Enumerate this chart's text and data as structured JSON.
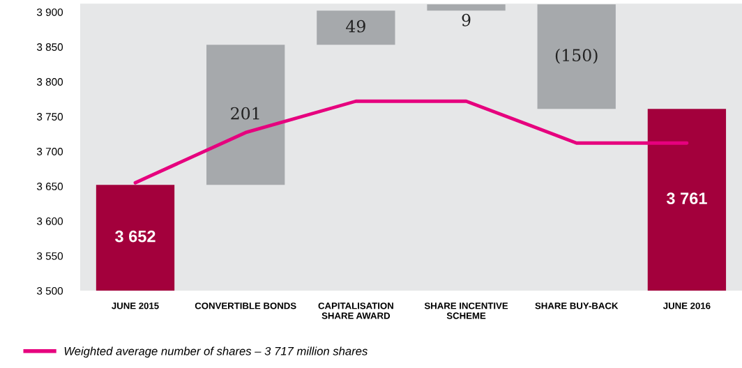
{
  "chart_data": {
    "type": "bar",
    "categories": [
      "JUNE 2015",
      "CONVERTIBLE BONDS",
      "CAPITALISATION\nSHARE AWARD",
      "SHARE INCENTIVE\nSCHEME",
      "SHARE BUY-BACK",
      "JUNE 2016"
    ],
    "series": [
      {
        "values": [
          3652,
          201,
          49,
          9,
          -150,
          3761
        ],
        "base": [
          null,
          3652,
          3853,
          3902,
          3911,
          null
        ],
        "colors": [
          "#a3003c",
          "#a6a9ac",
          "#a6a9ac",
          "#a6a9ac",
          "#a6a9ac",
          "#a3003c"
        ],
        "value_labels": [
          "3 652",
          "201",
          "49",
          "9",
          "(150)",
          "3 761"
        ]
      },
      {
        "type": "line",
        "name": "Weighted average number of shares – 3 717 million shares",
        "color": "#e6007e",
        "values": [
          3655,
          3727,
          3772,
          3772,
          3712,
          3712
        ]
      }
    ],
    "ylim": [
      3500,
      3912
    ],
    "yticks": [
      {
        "value": 3500,
        "label": "3 500"
      },
      {
        "value": 3550,
        "label": "3 550"
      },
      {
        "value": 3600,
        "label": "3 600"
      },
      {
        "value": 3650,
        "label": "3 650"
      },
      {
        "value": 3700,
        "label": "3 700"
      },
      {
        "value": 3750,
        "label": "3 750"
      },
      {
        "value": 3800,
        "label": "3 800"
      },
      {
        "value": 3850,
        "label": "3 850"
      },
      {
        "value": 3900,
        "label": "3 900"
      }
    ],
    "grid": false,
    "legend": "bottom left",
    "marker": "none",
    "line_style": "solid"
  }
}
